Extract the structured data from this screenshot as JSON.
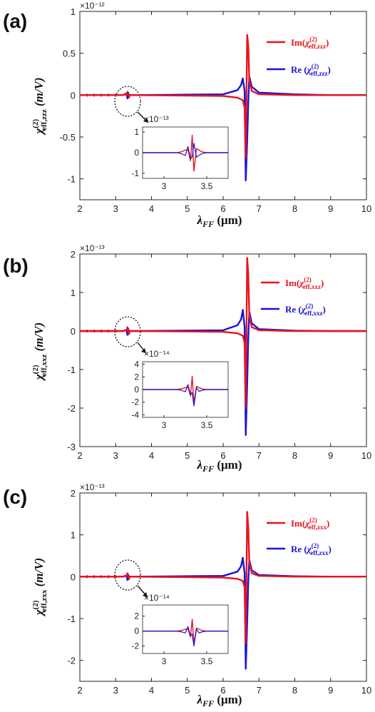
{
  "panel_tags": [
    "(a)",
    "(b)",
    "(c)"
  ],
  "colors": {
    "im": "#e8141c",
    "re": "#1a14d6",
    "axis": "#222222"
  },
  "chart_data": [
    {
      "type": "line",
      "panel": "(a)",
      "exp_label": "×10⁻¹²",
      "ylabel": "χ(2)eff,zzz (m/V)",
      "xlabel": "λFF (μm)",
      "xlim": [
        2,
        10
      ],
      "ylim": [
        -1.25,
        1
      ],
      "xticks": [
        2,
        3,
        4,
        5,
        6,
        7,
        8,
        9,
        10
      ],
      "yticks": [
        -1,
        -0.5,
        0,
        0.5,
        1
      ],
      "ytick_labels": [
        "-1",
        "-0.5",
        "0",
        "0.5",
        "1"
      ],
      "grid": false,
      "legend": "top-right",
      "series": [
        {
          "name": "Im(χ(2)eff,zzz)",
          "color_key": "im",
          "x": [
            2,
            3.2,
            3.3,
            3.33,
            3.35,
            3.37,
            3.4,
            3.5,
            6.0,
            6.4,
            6.55,
            6.6,
            6.63,
            6.67,
            6.7,
            6.73,
            6.8,
            7.0,
            8,
            9,
            10
          ],
          "y": [
            0,
            0,
            0.01,
            0.04,
            0,
            -0.03,
            0,
            0,
            -0.01,
            -0.03,
            -0.06,
            -0.15,
            -0.75,
            0.72,
            0.6,
            0.18,
            0.05,
            0.01,
            0,
            0,
            0
          ]
        },
        {
          "name": "Re (χ(2)eff,zzz)",
          "color_key": "re",
          "x": [
            2,
            3.2,
            3.3,
            3.33,
            3.35,
            3.37,
            3.4,
            3.5,
            6.0,
            6.4,
            6.5,
            6.55,
            6.6,
            6.63,
            6.67,
            6.7,
            6.73,
            6.8,
            7.0,
            8,
            9,
            10
          ],
          "y": [
            0,
            0,
            0.02,
            -0.04,
            0.03,
            0,
            0,
            0,
            0.01,
            0.06,
            0.12,
            0.2,
            0.05,
            -1.02,
            -0.55,
            -0.1,
            0.22,
            0.1,
            0.03,
            0.01,
            0,
            0
          ]
        }
      ],
      "inset": {
        "exp_label": "×10⁻¹³",
        "xlim": [
          2.75,
          3.75
        ],
        "ylim": [
          -1.25,
          1.25
        ],
        "xticks": [
          3,
          3.5
        ],
        "xtick_labels": [
          "3",
          "3.5"
        ],
        "yticks": [
          -1,
          0,
          1
        ],
        "ytick_labels": [
          "-1",
          "0",
          "1"
        ],
        "series": [
          {
            "color_key": "im",
            "x": [
              2.75,
              3.15,
              3.2,
              3.25,
              3.28,
              3.31,
              3.33,
              3.35,
              3.38,
              3.41,
              3.45,
              3.5,
              3.75
            ],
            "y": [
              0,
              0,
              0.04,
              0.12,
              0.15,
              -0.4,
              0.85,
              -0.9,
              0.2,
              0.12,
              0.03,
              0,
              0
            ]
          },
          {
            "color_key": "re",
            "x": [
              2.75,
              3.15,
              3.2,
              3.25,
              3.28,
              3.31,
              3.33,
              3.35,
              3.38,
              3.41,
              3.45,
              3.5,
              3.75
            ],
            "y": [
              0,
              0,
              -0.04,
              -0.14,
              0.3,
              -0.3,
              -0.2,
              0.45,
              -0.22,
              -0.12,
              -0.04,
              0,
              0
            ]
          }
        ]
      }
    },
    {
      "type": "line",
      "panel": "(b)",
      "exp_label": "×10⁻¹³",
      "ylabel": "χ(2)eff,xxz (m/V)",
      "xlabel": "λFF (μm)",
      "xlim": [
        2,
        10
      ],
      "ylim": [
        -3,
        2
      ],
      "xticks": [
        2,
        3,
        4,
        5,
        6,
        7,
        8,
        9,
        10
      ],
      "yticks": [
        -3,
        -2,
        -1,
        0,
        1,
        2
      ],
      "ytick_labels": [
        "-3",
        "-2",
        "-1",
        "0",
        "1",
        "2"
      ],
      "grid": false,
      "legend": "top-right",
      "series": [
        {
          "name": "Im(χ(2)eff,xxz)",
          "color_key": "im",
          "x": [
            2,
            3.2,
            3.3,
            3.33,
            3.35,
            3.37,
            3.4,
            3.5,
            6.0,
            6.4,
            6.55,
            6.6,
            6.63,
            6.67,
            6.7,
            6.73,
            6.8,
            7.0,
            8,
            9,
            10
          ],
          "y": [
            0,
            0,
            0.02,
            0.1,
            0,
            -0.08,
            0,
            0,
            -0.02,
            -0.06,
            -0.12,
            -0.3,
            -2.0,
            1.9,
            1.5,
            0.4,
            0.1,
            0.02,
            0,
            0,
            0
          ]
        },
        {
          "name": "Re (χ(2)eff,xxz)",
          "color_key": "re",
          "x": [
            2,
            3.2,
            3.3,
            3.33,
            3.35,
            3.37,
            3.4,
            3.5,
            6.0,
            6.4,
            6.5,
            6.55,
            6.6,
            6.63,
            6.67,
            6.7,
            6.73,
            6.8,
            7.0,
            8,
            9,
            10
          ],
          "y": [
            0,
            0,
            0.03,
            -0.1,
            0.06,
            0,
            0,
            0,
            0.02,
            0.15,
            0.3,
            0.55,
            0.1,
            -2.7,
            -1.4,
            -0.2,
            0.5,
            0.2,
            0.05,
            0.01,
            0,
            0
          ]
        }
      ],
      "inset": {
        "exp_label": "×10⁻¹⁴",
        "xlim": [
          2.75,
          3.75
        ],
        "ylim": [
          -4.4,
          4.4
        ],
        "xticks": [
          3,
          3.5
        ],
        "xtick_labels": [
          "3",
          "3.5"
        ],
        "yticks": [
          -4,
          -2,
          0,
          2,
          4
        ],
        "ytick_labels": [
          "-4",
          "-2",
          "0",
          "2",
          "4"
        ],
        "series": [
          {
            "color_key": "im",
            "x": [
              2.75,
              3.15,
              3.2,
              3.25,
              3.28,
              3.31,
              3.33,
              3.35,
              3.38,
              3.41,
              3.45,
              3.5,
              3.75
            ],
            "y": [
              0,
              0,
              0.1,
              0.3,
              0.4,
              -1.0,
              2.1,
              -2.2,
              0.5,
              0.3,
              0.08,
              0,
              0
            ]
          },
          {
            "color_key": "re",
            "x": [
              2.75,
              3.15,
              3.2,
              3.25,
              3.28,
              3.31,
              3.33,
              3.35,
              3.38,
              3.41,
              3.45,
              3.5,
              3.75
            ],
            "y": [
              0,
              0,
              -0.1,
              -0.35,
              0.8,
              -0.8,
              -0.5,
              -2.6,
              0.3,
              -0.3,
              -0.1,
              0,
              0
            ]
          }
        ]
      }
    },
    {
      "type": "line",
      "panel": "(c)",
      "exp_label": "×10⁻¹³",
      "ylabel": "χ(2)eff,zxx (m/V)",
      "xlabel": "λFF (μm)",
      "xlim": [
        2,
        10
      ],
      "ylim": [
        -2.5,
        2
      ],
      "xticks": [
        2,
        3,
        4,
        5,
        6,
        7,
        8,
        9,
        10
      ],
      "yticks": [
        -2,
        -1,
        0,
        1,
        2
      ],
      "ytick_labels": [
        "-2",
        "-1",
        "0",
        "1",
        "2"
      ],
      "grid": false,
      "legend": "top-right",
      "series": [
        {
          "name": "Im(χ(2)eff,zxx)",
          "color_key": "im",
          "x": [
            2,
            3.2,
            3.3,
            3.33,
            3.35,
            3.37,
            3.4,
            3.5,
            6.0,
            6.4,
            6.55,
            6.6,
            6.63,
            6.67,
            6.7,
            6.73,
            6.8,
            7.0,
            8,
            9,
            10
          ],
          "y": [
            0,
            0,
            0.02,
            0.08,
            0,
            -0.06,
            0,
            0,
            -0.02,
            -0.05,
            -0.1,
            -0.25,
            -1.6,
            1.55,
            1.2,
            0.35,
            0.08,
            0.02,
            0,
            0,
            0
          ]
        },
        {
          "name": "Re (χ(2)eff,zxx)",
          "color_key": "re",
          "x": [
            2,
            3.2,
            3.3,
            3.33,
            3.35,
            3.37,
            3.4,
            3.5,
            6.0,
            6.4,
            6.5,
            6.55,
            6.6,
            6.63,
            6.67,
            6.7,
            6.73,
            6.8,
            7.0,
            8,
            9,
            10
          ],
          "y": [
            0,
            0,
            0.03,
            -0.08,
            0.05,
            0,
            0,
            0,
            0.02,
            0.12,
            0.25,
            0.45,
            0.08,
            -2.2,
            -1.1,
            -0.15,
            0.4,
            0.15,
            0.04,
            0.01,
            0,
            0
          ]
        }
      ],
      "inset": {
        "exp_label": "×10⁻¹⁴",
        "xlim": [
          2.75,
          3.75
        ],
        "ylim": [
          -3,
          3.5
        ],
        "xticks": [
          3,
          3.5
        ],
        "xtick_labels": [
          "3",
          "3.5"
        ],
        "yticks": [
          -2,
          0,
          2
        ],
        "ytick_labels": [
          "-2",
          "0",
          "2"
        ],
        "series": [
          {
            "color_key": "im",
            "x": [
              2.75,
              3.15,
              3.2,
              3.25,
              3.28,
              3.31,
              3.33,
              3.35,
              3.38,
              3.41,
              3.45,
              3.5,
              3.75
            ],
            "y": [
              0,
              0,
              0.08,
              0.25,
              0.3,
              -0.8,
              1.6,
              -1.7,
              0.4,
              0.25,
              0.06,
              0,
              0
            ]
          },
          {
            "color_key": "re",
            "x": [
              2.75,
              3.15,
              3.2,
              3.25,
              3.28,
              3.31,
              3.33,
              3.35,
              3.38,
              3.41,
              3.45,
              3.5,
              3.75
            ],
            "y": [
              0,
              0,
              -0.08,
              -0.25,
              0.6,
              -0.6,
              -0.4,
              -2.0,
              0.25,
              -0.25,
              -0.08,
              0,
              0
            ]
          }
        ]
      }
    }
  ]
}
